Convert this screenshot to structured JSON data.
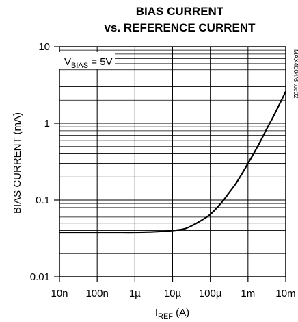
{
  "chart_data": {
    "type": "line",
    "title": "BIAS CURRENT",
    "subtitle": "vs. REFERENCE CURRENT",
    "xlabel": {
      "main": "I",
      "sub": "REF",
      "unit": " (A)"
    },
    "ylabel": "BIAS CURRENT (mA)",
    "x_scale": "log",
    "y_scale": "log",
    "xlim": [
      1e-08,
      0.01
    ],
    "ylim": [
      0.01,
      10
    ],
    "x_ticks": [
      1e-08,
      1e-07,
      1e-06,
      1e-05,
      0.0001,
      0.001,
      0.01
    ],
    "x_tick_labels": [
      "10n",
      "100n",
      "1µ",
      "10µ",
      "100µ",
      "1m",
      "10m"
    ],
    "y_ticks": [
      0.01,
      0.1,
      1,
      10
    ],
    "y_tick_labels": [
      "0.01",
      "0.1",
      "1",
      "10"
    ],
    "grid": true,
    "annotation": {
      "main": "V",
      "sub": "BIAS",
      "rest": " = 5V"
    },
    "figure_code": "MAX4004/6 toc02",
    "series": [
      {
        "x": [
          1e-08,
          3.16e-08,
          1e-07,
          3.16e-07,
          1e-06,
          3.16e-06,
          1e-05,
          2e-05,
          3.16e-05,
          5e-05,
          0.0001,
          0.0002,
          0.000316,
          0.0005,
          0.001,
          0.002,
          0.00316,
          0.005,
          0.01
        ],
        "y": [
          0.038,
          0.038,
          0.038,
          0.038,
          0.038,
          0.0385,
          0.04,
          0.042,
          0.046,
          0.052,
          0.065,
          0.093,
          0.125,
          0.17,
          0.3,
          0.55,
          0.85,
          1.3,
          2.6
        ]
      }
    ]
  }
}
